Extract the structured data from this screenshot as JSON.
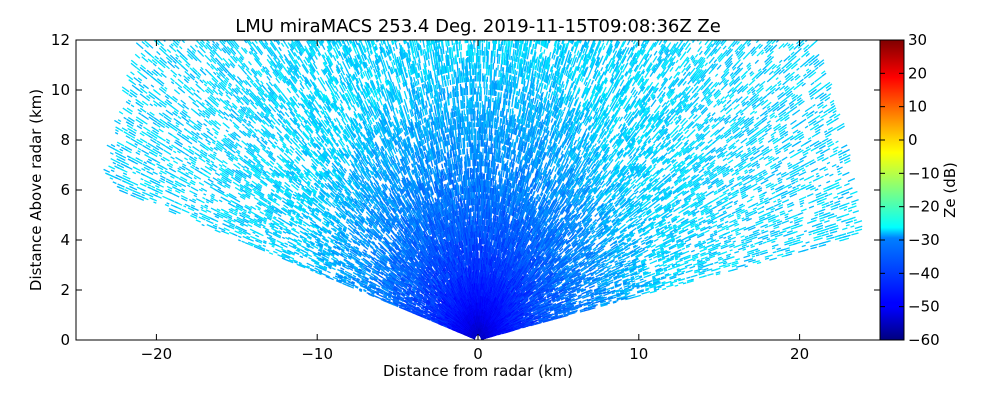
{
  "chart_data": {
    "type": "heatmap",
    "subtype": "radar-rhi-scan",
    "title": "LMU miraMACS 253.4 Deg. 2019-11-15T09:08:36Z  Ze",
    "xlabel": "Distance from radar (km)",
    "ylabel": "Distance Above radar  (km)",
    "xlim": [
      -25,
      25
    ],
    "ylim": [
      0,
      12
    ],
    "xticks": [
      -20,
      -10,
      0,
      10,
      20
    ],
    "xtick_labels": [
      "−20",
      "−10",
      "0",
      "10",
      "20"
    ],
    "yticks": [
      0,
      2,
      4,
      6,
      8,
      10,
      12
    ],
    "ytick_labels": [
      "0",
      "2",
      "4",
      "6",
      "8",
      "10",
      "12"
    ],
    "colorbar": {
      "label": "Ze (dB)",
      "colormap": "jet",
      "range": [
        -60,
        30
      ],
      "ticks": [
        -60,
        -50,
        -40,
        -30,
        -20,
        -10,
        0,
        10,
        20,
        30
      ],
      "tick_labels": [
        "−60",
        "−50",
        "−40",
        "−30",
        "−20",
        "−10",
        "0",
        "10",
        "20",
        "30"
      ]
    },
    "scan": {
      "max_range_km": 24,
      "elevation_left_deg": 165,
      "elevation_right_deg": 10,
      "near_radar_ze_db": -56,
      "far_range_ze_db": -30,
      "observed_ze_range_db": [
        -58,
        -28
      ]
    },
    "grid": false,
    "legend": "colorbar-right"
  }
}
